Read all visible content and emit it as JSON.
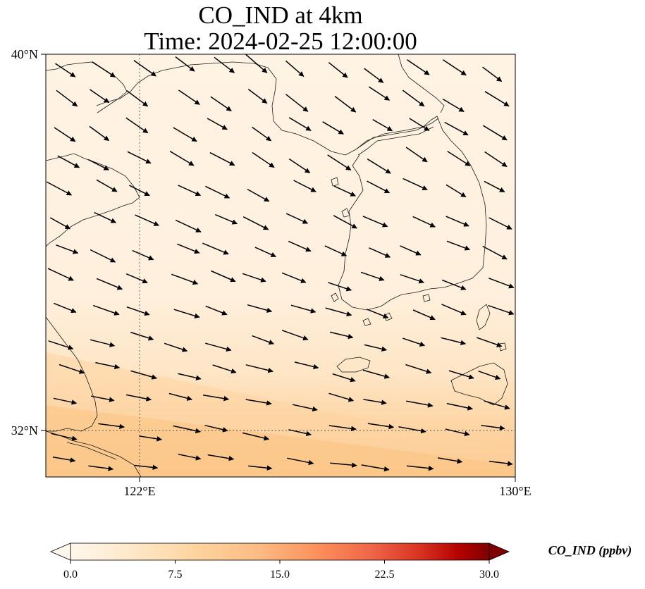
{
  "title": {
    "line1": "CO_IND at 4km",
    "line2": "Time: 2024-02-25 12:00:00"
  },
  "map": {
    "lat_range": [
      31.0,
      40.0
    ],
    "lon_range": [
      120.0,
      130.0
    ],
    "lat_ticks": [
      {
        "value": 40,
        "label": "40°N"
      },
      {
        "value": 32,
        "label": "32°N"
      }
    ],
    "lon_ticks": [
      {
        "value": 122,
        "label": "122°E"
      },
      {
        "value": 130,
        "label": "130°E"
      }
    ],
    "gridlines": "dotted",
    "field_colors": {
      "low": "#fff1e0",
      "mid": "#fdd9a8",
      "high": "#fcc384"
    },
    "wind_vectors": "present",
    "coastlines": "present"
  },
  "colorbar": {
    "label": "CO_IND (ppbv)",
    "range": [
      0.0,
      30.0
    ],
    "extend": "both",
    "colormap": "OrRd",
    "ticks": [
      "0.0",
      "7.5",
      "15.0",
      "22.5",
      "30.0"
    ]
  }
}
